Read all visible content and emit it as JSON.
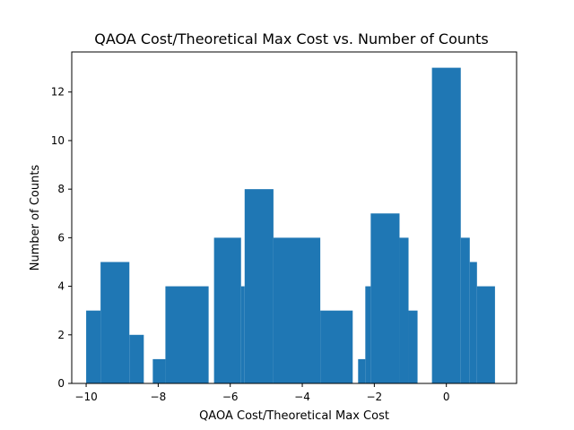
{
  "chart_data": {
    "type": "bar",
    "title": "QAOA Cost/Theoretical Max Cost vs. Number of Counts",
    "xlabel": "QAOA Cost/Theoretical Max Cost",
    "ylabel": "Number of Counts",
    "xlim": [
      -10.4,
      1.95
    ],
    "ylim": [
      0,
      13.65
    ],
    "xticks": [
      -10,
      -8,
      -6,
      -4,
      -2,
      0
    ],
    "yticks": [
      0,
      2,
      4,
      6,
      8,
      10,
      12
    ],
    "color": "#1f77b4",
    "grid": false,
    "bars": [
      {
        "x0": -10.0,
        "x1": -9.6,
        "value": 3
      },
      {
        "x0": -9.6,
        "x1": -8.8,
        "value": 5
      },
      {
        "x0": -8.8,
        "x1": -8.4,
        "value": 2
      },
      {
        "x0": -8.15,
        "x1": -7.8,
        "value": 1
      },
      {
        "x0": -7.8,
        "x1": -6.6,
        "value": 4
      },
      {
        "x0": -6.45,
        "x1": -5.7,
        "value": 6
      },
      {
        "x0": -5.7,
        "x1": -5.6,
        "value": 4
      },
      {
        "x0": -5.6,
        "x1": -4.8,
        "value": 8
      },
      {
        "x0": -4.8,
        "x1": -3.5,
        "value": 6
      },
      {
        "x0": -3.5,
        "x1": -2.6,
        "value": 3
      },
      {
        "x0": -2.45,
        "x1": -2.25,
        "value": 1
      },
      {
        "x0": -2.25,
        "x1": -2.1,
        "value": 4
      },
      {
        "x0": -2.1,
        "x1": -1.3,
        "value": 7
      },
      {
        "x0": -1.3,
        "x1": -1.05,
        "value": 6
      },
      {
        "x0": -1.05,
        "x1": -0.8,
        "value": 3
      },
      {
        "x0": -0.4,
        "x1": 0.4,
        "value": 13
      },
      {
        "x0": 0.4,
        "x1": 0.65,
        "value": 6
      },
      {
        "x0": 0.65,
        "x1": 0.85,
        "value": 5
      },
      {
        "x0": 0.85,
        "x1": 1.35,
        "value": 4
      }
    ]
  }
}
